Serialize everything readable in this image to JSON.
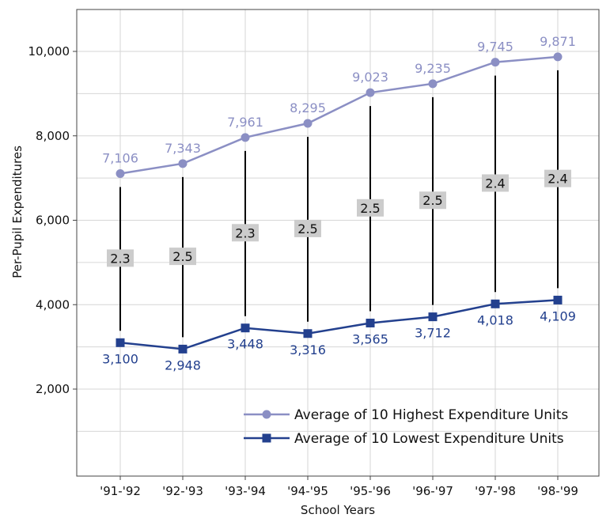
{
  "chart_data": {
    "type": "line",
    "categories": [
      "'91-'92",
      "'92-'93",
      "'93-'94",
      "'94-'95",
      "'95-'96",
      "'96-'97",
      "'97-'98",
      "'98-'99"
    ],
    "xlabel": "School Years",
    "ylabel": "Per-Pupil Expenditures",
    "ylim": [
      0,
      11000
    ],
    "yticks": [
      2000,
      4000,
      6000,
      8000,
      10000
    ],
    "ytick_labels": [
      "2,000",
      "4,000",
      "6,000",
      "8,000",
      "10,000"
    ],
    "grid": true,
    "legend": "bottom-right",
    "series": [
      {
        "name": "Average of 10 Highest Expenditure Units",
        "values": [
          7106,
          7343,
          7961,
          8295,
          9023,
          9235,
          9745,
          9871
        ],
        "labels": [
          "7,106",
          "7,343",
          "7,961",
          "8,295",
          "9,023",
          "9,235",
          "9,745",
          "9,871"
        ],
        "color": "#8b8fc4",
        "marker": "circle"
      },
      {
        "name": "Average of 10 Lowest Expenditure Units",
        "values": [
          3100,
          2948,
          3448,
          3316,
          3565,
          3712,
          4018,
          4109
        ],
        "labels": [
          "3,100",
          "2,948",
          "3,448",
          "3,316",
          "3,565",
          "3,712",
          "4,018",
          "4,109"
        ],
        "color": "#23408e",
        "marker": "square"
      }
    ],
    "ratios": [
      "2.3",
      "2.5",
      "2.3",
      "2.5",
      "2.5",
      "2.5",
      "2.4",
      "2.4"
    ],
    "ratio_box_color": "#cccccc"
  }
}
